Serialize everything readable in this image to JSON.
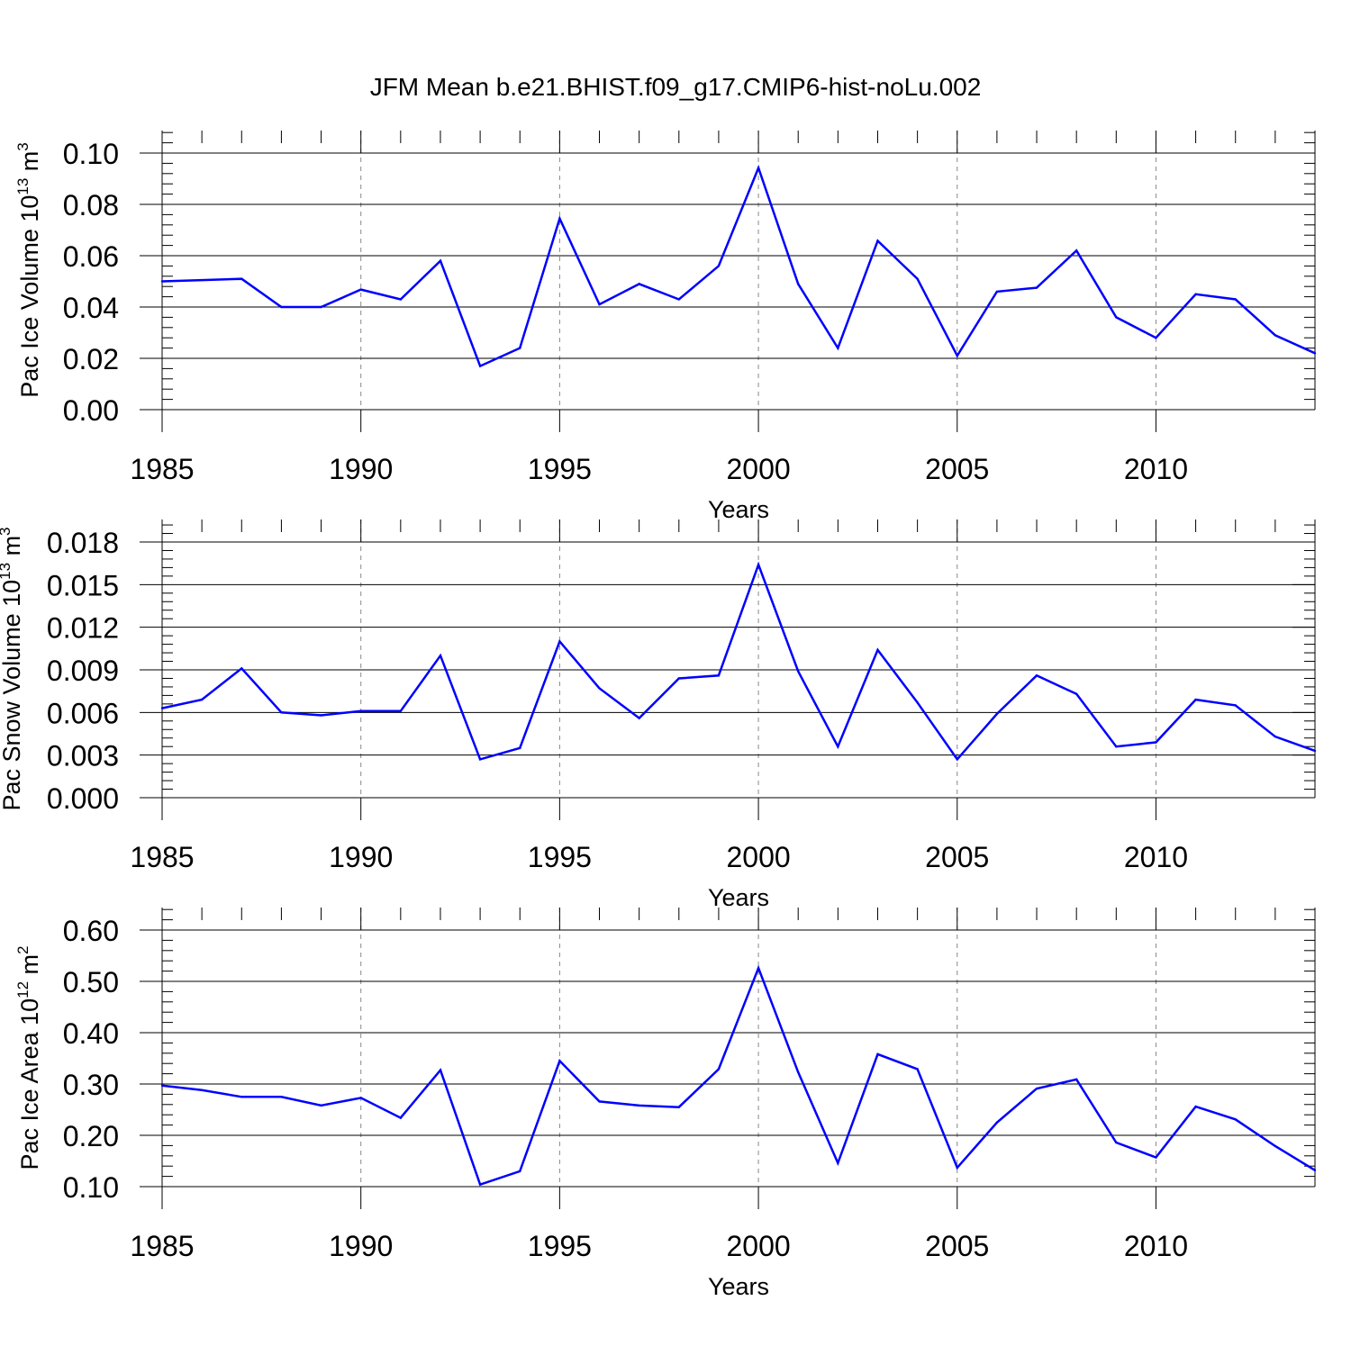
{
  "title": "JFM Mean b.e21.BHIST.f09_g17.CMIP6-hist-noLu.002",
  "colors": {
    "line": "#0000ff",
    "axis": "#000000",
    "grid": "#888888"
  },
  "chart_data": [
    {
      "type": "line",
      "ylabel": "Pac Ice Volume 10",
      "ylabel_exp": "13",
      "ylabel_unit": " m",
      "ylabel_unit_exp": "3",
      "xlabel": "Years",
      "xlim": [
        1985,
        2014
      ],
      "ylim": [
        0.0,
        0.1
      ],
      "yticks": [
        "0.00",
        "0.02",
        "0.04",
        "0.06",
        "0.08",
        "0.10"
      ],
      "xticks": [
        "1985",
        "1990",
        "1995",
        "2000",
        "2005",
        "2010"
      ],
      "grid": "vertical dashed at major x ticks",
      "x": [
        1985,
        1986,
        1987,
        1988,
        1989,
        1990,
        1991,
        1992,
        1993,
        1994,
        1995,
        1996,
        1997,
        1998,
        1999,
        2000,
        2001,
        2002,
        2003,
        2004,
        2005,
        2006,
        2007,
        2008,
        2009,
        2010,
        2011,
        2012,
        2013,
        2014
      ],
      "values": [
        0.05,
        0.0505,
        0.051,
        0.04,
        0.04,
        0.0468,
        0.043,
        0.058,
        0.017,
        0.024,
        0.0745,
        0.041,
        0.049,
        0.043,
        0.056,
        0.0942,
        0.049,
        0.024,
        0.0658,
        0.051,
        0.021,
        0.046,
        0.0475,
        0.062,
        0.036,
        0.028,
        0.045,
        0.043,
        0.029,
        0.022
      ]
    },
    {
      "type": "line",
      "ylabel": "Pac Snow Volume 10",
      "ylabel_exp": "13",
      "ylabel_unit": " m",
      "ylabel_unit_exp": "3",
      "xlabel": "Years",
      "xlim": [
        1985,
        2014
      ],
      "ylim": [
        0.0,
        0.018
      ],
      "yticks": [
        "0.000",
        "0.003",
        "0.006",
        "0.009",
        "0.012",
        "0.015",
        "0.018"
      ],
      "xticks": [
        "1985",
        "1990",
        "1995",
        "2000",
        "2005",
        "2010"
      ],
      "grid": "vertical dashed at major x ticks",
      "x": [
        1985,
        1986,
        1987,
        1988,
        1989,
        1990,
        1991,
        1992,
        1993,
        1994,
        1995,
        1996,
        1997,
        1998,
        1999,
        2000,
        2001,
        2002,
        2003,
        2004,
        2005,
        2006,
        2007,
        2008,
        2009,
        2010,
        2011,
        2012,
        2013,
        2014
      ],
      "values": [
        0.0063,
        0.0069,
        0.0091,
        0.006,
        0.0058,
        0.0061,
        0.0061,
        0.01,
        0.0027,
        0.0035,
        0.011,
        0.0077,
        0.0056,
        0.0084,
        0.0086,
        0.0164,
        0.0089,
        0.0036,
        0.0104,
        0.0067,
        0.0027,
        0.0059,
        0.0086,
        0.0073,
        0.0036,
        0.0039,
        0.0069,
        0.0065,
        0.0043,
        0.0033
      ]
    },
    {
      "type": "line",
      "ylabel": "Pac Ice Area 10",
      "ylabel_exp": "12",
      "ylabel_unit": " m",
      "ylabel_unit_exp": "2",
      "xlabel": "Years",
      "xlim": [
        1985,
        2014
      ],
      "ylim": [
        0.1,
        0.6
      ],
      "yticks": [
        "0.10",
        "0.20",
        "0.30",
        "0.40",
        "0.50",
        "0.60"
      ],
      "xticks": [
        "1985",
        "1990",
        "1995",
        "2000",
        "2005",
        "2010"
      ],
      "grid": "vertical dashed at major x ticks",
      "x": [
        1985,
        1986,
        1987,
        1988,
        1989,
        1990,
        1991,
        1992,
        1993,
        1994,
        1995,
        1996,
        1997,
        1998,
        1999,
        2000,
        2001,
        2002,
        2003,
        2004,
        2005,
        2006,
        2007,
        2008,
        2009,
        2010,
        2011,
        2012,
        2013,
        2014
      ],
      "values": [
        0.297,
        0.288,
        0.275,
        0.275,
        0.258,
        0.273,
        0.234,
        0.327,
        0.104,
        0.13,
        0.345,
        0.266,
        0.258,
        0.255,
        0.329,
        0.526,
        0.323,
        0.146,
        0.358,
        0.329,
        0.137,
        0.225,
        0.291,
        0.309,
        0.186,
        0.157,
        0.256,
        0.231,
        0.179,
        0.132
      ]
    }
  ]
}
